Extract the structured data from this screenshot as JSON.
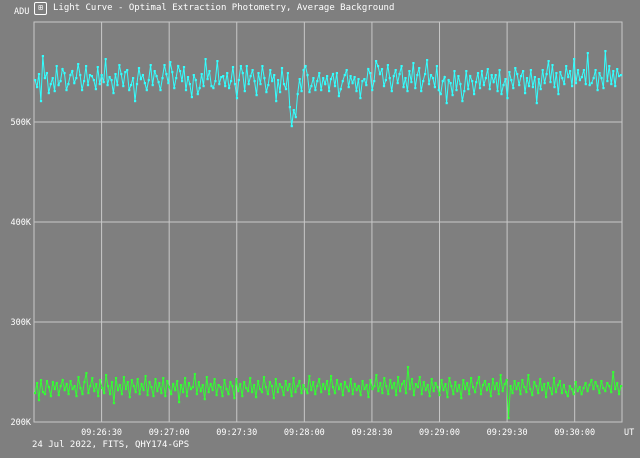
{
  "window": {
    "title": "Light Curve - Optimal Extraction Photometry, Average Background",
    "icon": "light-curve-app-icon",
    "icon_glyph": "⊞"
  },
  "footer": {
    "info": "24 Jul 2022, FITS, QHY174-GPS"
  },
  "colors": {
    "background": "#7f7f7f",
    "grid": "#c8c8c8",
    "text": "#ffffff",
    "series_photometry": "#33ffff",
    "series_background": "#33ff33"
  },
  "chart_data": {
    "type": "line",
    "ylabel": "ADU",
    "xlabel": "UT",
    "ylim": [
      200000,
      600000
    ],
    "yticks": [
      {
        "value": 500000,
        "label": "500K"
      },
      {
        "value": 400000,
        "label": "400K"
      },
      {
        "value": 300000,
        "label": "300K"
      },
      {
        "value": 200000,
        "label": "200K"
      }
    ],
    "xlim_seconds": [
      0,
      435
    ],
    "xticks": [
      {
        "value": 50,
        "label": "09:26:30"
      },
      {
        "value": 100,
        "label": "09:27:00"
      },
      {
        "value": 150,
        "label": "09:27:30"
      },
      {
        "value": 200,
        "label": "09:28:00"
      },
      {
        "value": 250,
        "label": "09:28:30"
      },
      {
        "value": 300,
        "label": "09:29:00"
      },
      {
        "value": 350,
        "label": "09:29:30"
      },
      {
        "value": 400,
        "label": "09:30:00"
      }
    ],
    "grid": true,
    "series": [
      {
        "color": "#33ffff",
        "values": [
          542000,
          535000,
          548000,
          521000,
          566000,
          544000,
          549000,
          529000,
          538000,
          544000,
          531000,
          556000,
          537000,
          541000,
          553000,
          549000,
          532000,
          538000,
          547000,
          551000,
          539000,
          544000,
          558000,
          547000,
          532000,
          541000,
          556000,
          537000,
          547000,
          546000,
          542000,
          533000,
          555000,
          538000,
          547000,
          540000,
          563000,
          537000,
          545000,
          542000,
          529000,
          548000,
          537000,
          557000,
          548000,
          536000,
          550000,
          552000,
          532000,
          537000,
          544000,
          521000,
          538000,
          554000,
          543000,
          547000,
          539000,
          532000,
          542000,
          557000,
          537000,
          551000,
          546000,
          540000,
          532000,
          544000,
          557000,
          548000,
          539000,
          560000,
          550000,
          534000,
          544000,
          556000,
          551000,
          541000,
          555000,
          532000,
          545000,
          538000,
          525000,
          547000,
          542000,
          528000,
          534000,
          548000,
          536000,
          563000,
          543000,
          551000,
          536000,
          534000,
          541000,
          561000,
          538000,
          545000,
          546000,
          536000,
          549000,
          534000,
          541000,
          555000,
          538000,
          524000,
          542000,
          556000,
          549000,
          531000,
          556000,
          538000,
          546000,
          552000,
          541000,
          527000,
          549000,
          538000,
          556000,
          544000,
          530000,
          537000,
          552000,
          541000,
          547000,
          521000,
          542000,
          530000,
          554000,
          538000,
          533000,
          549000,
          515000,
          496000,
          512000,
          505000,
          528000,
          543000,
          531000,
          552000,
          556000,
          547000,
          530000,
          536000,
          544000,
          532000,
          541000,
          549000,
          532000,
          544000,
          538000,
          546000,
          531000,
          543000,
          548000,
          536000,
          549000,
          526000,
          533000,
          541000,
          547000,
          552000,
          535000,
          546000,
          539000,
          545000,
          531000,
          543000,
          524000,
          541000,
          543000,
          537000,
          553000,
          549000,
          532000,
          541000,
          561000,
          556000,
          548000,
          553000,
          536000,
          542000,
          557000,
          544000,
          531000,
          546000,
          552000,
          539000,
          548000,
          556000,
          535000,
          544000,
          531000,
          551000,
          540000,
          559000,
          534000,
          547000,
          554000,
          531000,
          541000,
          548000,
          562000,
          538000,
          547000,
          544000,
          535000,
          556000,
          532000,
          528000,
          541000,
          545000,
          519000,
          542000,
          539000,
          527000,
          551000,
          532000,
          546000,
          538000,
          521000,
          531000,
          551000,
          533000,
          546000,
          541000,
          528000,
          540000,
          549000,
          534000,
          551000,
          537000,
          544000,
          553000,
          533000,
          547000,
          540000,
          547000,
          531000,
          552000,
          528000,
          537000,
          543000,
          524000,
          550000,
          542000,
          534000,
          554000,
          548000,
          537000,
          546000,
          551000,
          529000,
          544000,
          536000,
          552000,
          535000,
          545000,
          519000,
          543000,
          533000,
          552000,
          539000,
          548000,
          561000,
          540000,
          557000,
          535000,
          549000,
          528000,
          550000,
          544000,
          538000,
          556000,
          545000,
          551000,
          536000,
          563000,
          539000,
          552000,
          542000,
          545000,
          552000,
          538000,
          569000,
          537000,
          539000,
          544000,
          552000,
          532000,
          549000,
          544000,
          534000,
          571000,
          541000,
          556000,
          538000,
          551000,
          536000,
          553000,
          546000,
          547000
        ]
      },
      {
        "color": "#33ff33",
        "values": [
          229000,
          239000,
          222000,
          242000,
          230000,
          228000,
          241000,
          235000,
          226000,
          240000,
          233000,
          239000,
          227000,
          236000,
          242000,
          232000,
          238000,
          228000,
          241000,
          233000,
          236000,
          226000,
          245000,
          234000,
          228000,
          240000,
          249000,
          229000,
          236000,
          244000,
          231000,
          238000,
          226000,
          242000,
          234000,
          229000,
          247000,
          236000,
          228000,
          240000,
          219000,
          244000,
          232000,
          237000,
          228000,
          245000,
          233000,
          240000,
          225000,
          242000,
          236000,
          230000,
          243000,
          228000,
          238000,
          232000,
          246000,
          227000,
          240000,
          235000,
          226000,
          243000,
          231000,
          239000,
          229000,
          244000,
          226000,
          241000,
          235000,
          228000,
          238000,
          232000,
          241000,
          220000,
          237000,
          230000,
          244000,
          226000,
          239000,
          233000,
          235000,
          248000,
          228000,
          240000,
          231000,
          237000,
          223000,
          245000,
          230000,
          238000,
          232000,
          243000,
          227000,
          237000,
          235000,
          226000,
          242000,
          233000,
          228000,
          240000,
          236000,
          224000,
          243000,
          231000,
          238000,
          226000,
          240000,
          234000,
          231000,
          244000,
          230000,
          237000,
          225000,
          241000,
          233000,
          230000,
          245000,
          235000,
          228000,
          240000,
          236000,
          224000,
          243000,
          230000,
          238000,
          235000,
          227000,
          241000,
          232000,
          238000,
          226000,
          244000,
          230000,
          236000,
          241000,
          229000,
          237000,
          233000,
          229000,
          246000,
          232000,
          240000,
          228000,
          236000,
          243000,
          230000,
          238000,
          233000,
          241000,
          228000,
          246000,
          235000,
          229000,
          242000,
          233000,
          238000,
          227000,
          240000,
          235000,
          231000,
          243000,
          228000,
          238000,
          232000,
          236000,
          227000,
          241000,
          233000,
          237000,
          225000,
          242000,
          233000,
          236000,
          247000,
          231000,
          239000,
          229000,
          244000,
          236000,
          228000,
          242000,
          234000,
          239000,
          227000,
          245000,
          231000,
          238000,
          241000,
          229000,
          255000,
          233000,
          243000,
          227000,
          238000,
          235000,
          245000,
          228000,
          240000,
          232000,
          237000,
          226000,
          243000,
          231000,
          239000,
          235000,
          227000,
          242000,
          232000,
          238000,
          225000,
          244000,
          236000,
          228000,
          240000,
          231000,
          237000,
          224000,
          242000,
          233000,
          239000,
          228000,
          244000,
          235000,
          230000,
          239000,
          245000,
          228000,
          237000,
          241000,
          232000,
          238000,
          226000,
          243000,
          233000,
          239000,
          228000,
          247000,
          231000,
          238000,
          242000,
          204000,
          236000,
          229000,
          241000,
          233000,
          239000,
          228000,
          242000,
          235000,
          230000,
          247000,
          233000,
          227000,
          240000,
          236000,
          229000,
          243000,
          232000,
          238000,
          225000,
          239000,
          234000,
          228000,
          244000,
          230000,
          237000,
          241000,
          229000,
          237000,
          230000,
          226000,
          236000,
          233000,
          228000,
          240000,
          231000,
          235000,
          228000,
          234000,
          239000,
          231000,
          237000,
          242000,
          233000,
          240000,
          236000,
          229000,
          241000,
          234000,
          231000,
          239000,
          236000,
          230000,
          250000,
          233000,
          239000,
          228000,
          236000
        ]
      }
    ]
  }
}
